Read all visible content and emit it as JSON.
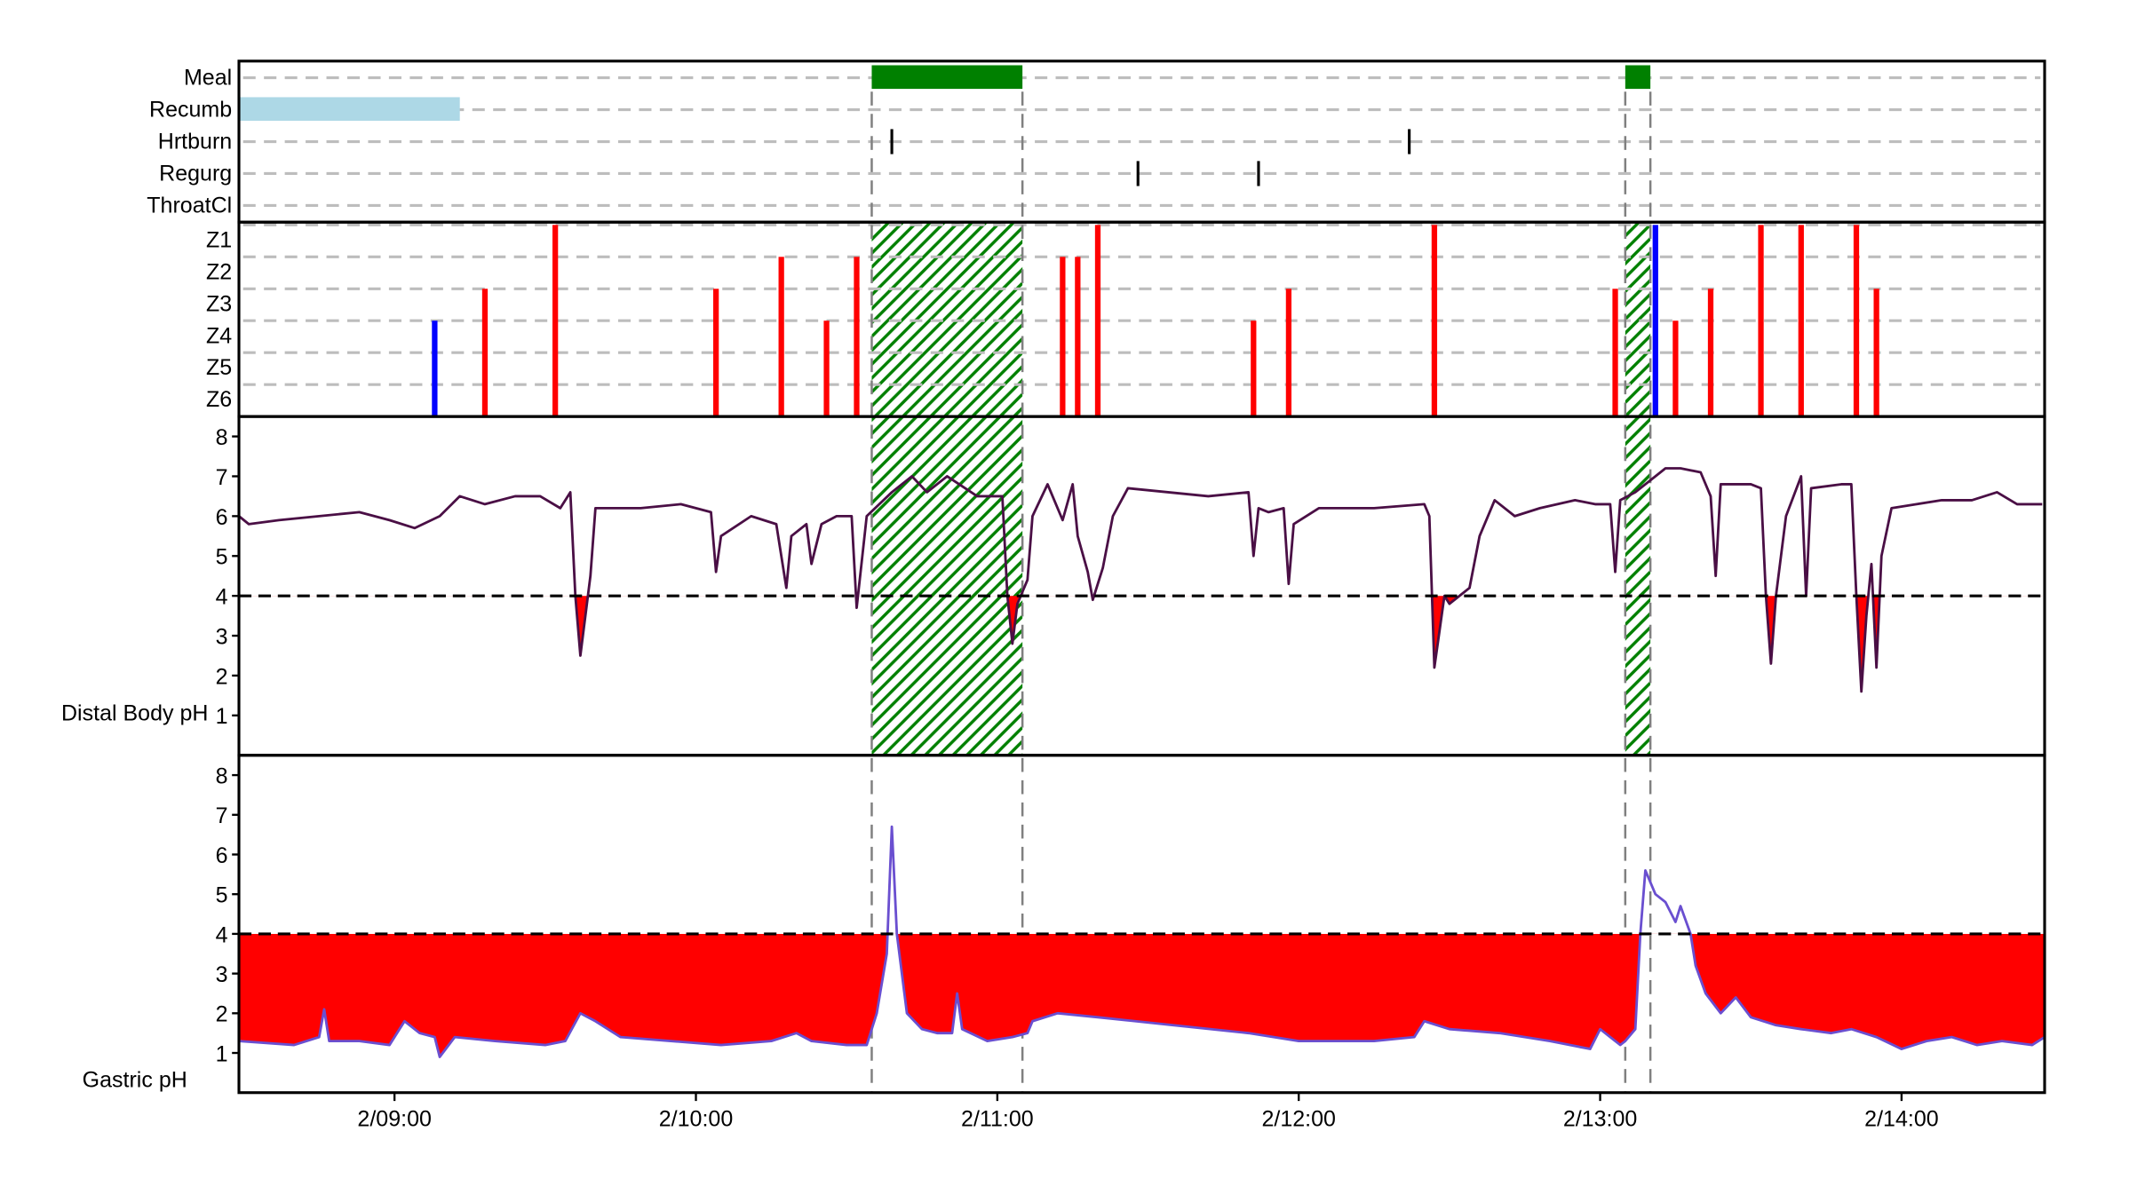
{
  "chart_data": {
    "type": "line",
    "x_axis": {
      "type": "time",
      "range": [
        "08:29",
        "14:29"
      ],
      "ticks": [
        {
          "time": "09:00",
          "label": "2/09:00"
        },
        {
          "time": "10:00",
          "label": "2/10:00"
        },
        {
          "time": "11:00",
          "label": "2/11:00"
        },
        {
          "time": "12:00",
          "label": "2/12:00"
        },
        {
          "time": "13:00",
          "label": "2/13:00"
        },
        {
          "time": "14:00",
          "label": "2/14:00"
        }
      ]
    },
    "events_panel": {
      "rows": [
        "Meal",
        "Recumb",
        "Hrtburn",
        "Regurg",
        "ThroatCl"
      ],
      "meal_periods": [
        {
          "start": "10:35",
          "end": "11:05"
        },
        {
          "start": "13:05",
          "end": "13:10"
        }
      ],
      "recumbent_periods": [
        {
          "start": "08:29",
          "end": "09:13"
        }
      ],
      "heartburn_marks": [
        "10:39",
        "12:22"
      ],
      "regurgitation_marks": [
        "11:28",
        "11:52"
      ],
      "throat_clear_marks": [],
      "colors": {
        "meal": "#008000",
        "recumb": "#add8e6",
        "marker": "#000000"
      }
    },
    "impedance_panel": {
      "rows": [
        "Z1",
        "Z2",
        "Z3",
        "Z4",
        "Z5",
        "Z6"
      ],
      "events": [
        {
          "time": "09:08",
          "top_zone": "Z4",
          "color": "#0000ff"
        },
        {
          "time": "09:18",
          "top_zone": "Z3",
          "color": "#ff0000"
        },
        {
          "time": "09:32",
          "top_zone": "Z1",
          "color": "#ff0000"
        },
        {
          "time": "10:04",
          "top_zone": "Z3",
          "color": "#ff0000"
        },
        {
          "time": "10:17",
          "top_zone": "Z2",
          "color": "#ff0000"
        },
        {
          "time": "10:26",
          "top_zone": "Z4",
          "color": "#ff0000"
        },
        {
          "time": "10:32",
          "top_zone": "Z2",
          "color": "#ff0000"
        },
        {
          "time": "11:13",
          "top_zone": "Z2",
          "color": "#ff0000"
        },
        {
          "time": "11:16",
          "top_zone": "Z2",
          "color": "#ff0000"
        },
        {
          "time": "11:20",
          "top_zone": "Z1",
          "color": "#ff0000"
        },
        {
          "time": "11:51",
          "top_zone": "Z4",
          "color": "#ff0000"
        },
        {
          "time": "11:58",
          "top_zone": "Z3",
          "color": "#ff0000"
        },
        {
          "time": "12:27",
          "top_zone": "Z1",
          "color": "#ff0000"
        },
        {
          "time": "13:03",
          "top_zone": "Z3",
          "color": "#ff0000"
        },
        {
          "time": "13:11",
          "top_zone": "Z1",
          "color": "#0000ff"
        },
        {
          "time": "13:15",
          "top_zone": "Z4",
          "color": "#ff0000"
        },
        {
          "time": "13:22",
          "top_zone": "Z3",
          "color": "#ff0000"
        },
        {
          "time": "13:32",
          "top_zone": "Z1",
          "color": "#ff0000"
        },
        {
          "time": "13:40",
          "top_zone": "Z1",
          "color": "#ff0000"
        },
        {
          "time": "13:51",
          "top_zone": "Z1",
          "color": "#ff0000"
        },
        {
          "time": "13:55",
          "top_zone": "Z3",
          "color": "#ff0000"
        }
      ]
    },
    "distal_ph_panel": {
      "ylabel": "Distal Body pH",
      "ylim": [
        0,
        8.5
      ],
      "yticks": [
        1,
        2,
        3,
        4,
        5,
        6,
        7,
        8
      ],
      "threshold": 4,
      "line_color": "#4a0f45",
      "fill_below_threshold_color": "#ff0000",
      "series": [
        [
          "08:29",
          6.0
        ],
        [
          "08:31",
          5.8
        ],
        [
          "08:37",
          5.9
        ],
        [
          "08:45",
          6.0
        ],
        [
          "08:53",
          6.1
        ],
        [
          "08:59",
          5.9
        ],
        [
          "09:04",
          5.7
        ],
        [
          "09:09",
          6.0
        ],
        [
          "09:13",
          6.5
        ],
        [
          "09:18",
          6.3
        ],
        [
          "09:24",
          6.5
        ],
        [
          "09:29",
          6.5
        ],
        [
          "09:33",
          6.2
        ],
        [
          "09:35",
          6.6
        ],
        [
          "09:36",
          4.0
        ],
        [
          "09:37",
          2.5
        ],
        [
          "09:39",
          4.5
        ],
        [
          "09:40",
          6.2
        ],
        [
          "09:49",
          6.2
        ],
        [
          "09:57",
          6.3
        ],
        [
          "10:03",
          6.1
        ],
        [
          "10:04",
          4.6
        ],
        [
          "10:05",
          5.5
        ],
        [
          "10:11",
          6.0
        ],
        [
          "10:16",
          5.8
        ],
        [
          "10:18",
          4.2
        ],
        [
          "10:19",
          5.5
        ],
        [
          "10:22",
          5.8
        ],
        [
          "10:23",
          4.8
        ],
        [
          "10:25",
          5.8
        ],
        [
          "10:28",
          6.0
        ],
        [
          "10:31",
          6.0
        ],
        [
          "10:32",
          3.7
        ],
        [
          "10:34",
          6.0
        ],
        [
          "10:39",
          6.6
        ],
        [
          "10:41",
          6.8
        ],
        [
          "10:43",
          7.0
        ],
        [
          "10:46",
          6.6
        ],
        [
          "10:50",
          7.0
        ],
        [
          "10:56",
          6.5
        ],
        [
          "11:01",
          6.5
        ],
        [
          "11:02",
          4.0
        ],
        [
          "11:03",
          2.8
        ],
        [
          "11:04",
          3.8
        ],
        [
          "11:06",
          4.4
        ],
        [
          "11:07",
          6.0
        ],
        [
          "11:10",
          6.8
        ],
        [
          "11:11",
          6.5
        ],
        [
          "11:13",
          5.9
        ],
        [
          "11:15",
          6.8
        ],
        [
          "11:16",
          5.5
        ],
        [
          "11:18",
          4.6
        ],
        [
          "11:19",
          3.9
        ],
        [
          "11:21",
          4.7
        ],
        [
          "11:23",
          6.0
        ],
        [
          "11:26",
          6.7
        ],
        [
          "11:34",
          6.6
        ],
        [
          "11:42",
          6.5
        ],
        [
          "11:50",
          6.6
        ],
        [
          "11:51",
          5.0
        ],
        [
          "11:52",
          6.2
        ],
        [
          "11:54",
          6.1
        ],
        [
          "11:57",
          6.2
        ],
        [
          "11:58",
          4.3
        ],
        [
          "11:59",
          5.8
        ],
        [
          "12:04",
          6.2
        ],
        [
          "12:15",
          6.2
        ],
        [
          "12:25",
          6.3
        ],
        [
          "12:26",
          6.0
        ],
        [
          "12:27",
          2.2
        ],
        [
          "12:29",
          4.0
        ],
        [
          "12:30",
          3.8
        ],
        [
          "12:34",
          4.2
        ],
        [
          "12:36",
          5.5
        ],
        [
          "12:39",
          6.4
        ],
        [
          "12:43",
          6.0
        ],
        [
          "12:48",
          6.2
        ],
        [
          "12:55",
          6.4
        ],
        [
          "12:59",
          6.3
        ],
        [
          "13:02",
          6.3
        ],
        [
          "13:03",
          4.6
        ],
        [
          "13:04",
          6.4
        ],
        [
          "13:07",
          6.6
        ],
        [
          "13:11",
          7.0
        ],
        [
          "13:13",
          7.2
        ],
        [
          "13:16",
          7.2
        ],
        [
          "13:20",
          7.1
        ],
        [
          "13:22",
          6.5
        ],
        [
          "13:23",
          4.5
        ],
        [
          "13:24",
          6.8
        ],
        [
          "13:30",
          6.8
        ],
        [
          "13:32",
          6.7
        ],
        [
          "13:33",
          4.0
        ],
        [
          "13:34",
          2.3
        ],
        [
          "13:35",
          4.0
        ],
        [
          "13:37",
          6.0
        ],
        [
          "13:40",
          7.0
        ],
        [
          "13:41",
          4.0
        ],
        [
          "13:42",
          6.7
        ],
        [
          "13:48",
          6.8
        ],
        [
          "13:50",
          6.8
        ],
        [
          "13:51",
          4.0
        ],
        [
          "13:52",
          1.6
        ],
        [
          "13:53",
          3.5
        ],
        [
          "13:54",
          4.8
        ],
        [
          "13:55",
          2.2
        ],
        [
          "13:56",
          5.0
        ],
        [
          "13:58",
          6.2
        ],
        [
          "14:03",
          6.3
        ],
        [
          "14:08",
          6.4
        ],
        [
          "14:14",
          6.4
        ],
        [
          "14:19",
          6.6
        ],
        [
          "14:23",
          6.3
        ],
        [
          "14:28",
          6.3
        ]
      ]
    },
    "gastric_ph_panel": {
      "ylabel": "Gastric pH",
      "ylim": [
        0,
        8.5
      ],
      "yticks": [
        1,
        2,
        3,
        4,
        5,
        6,
        7,
        8
      ],
      "threshold": 4,
      "line_color": "#6a4fd0",
      "fill_below_threshold_color": "#ff0000",
      "series": [
        [
          "08:29",
          1.3
        ],
        [
          "08:40",
          1.2
        ],
        [
          "08:45",
          1.4
        ],
        [
          "08:46",
          2.1
        ],
        [
          "08:47",
          1.3
        ],
        [
          "08:53",
          1.3
        ],
        [
          "08:59",
          1.2
        ],
        [
          "09:02",
          1.8
        ],
        [
          "09:05",
          1.5
        ],
        [
          "09:08",
          1.4
        ],
        [
          "09:09",
          0.9
        ],
        [
          "09:12",
          1.4
        ],
        [
          "09:20",
          1.3
        ],
        [
          "09:30",
          1.2
        ],
        [
          "09:34",
          1.3
        ],
        [
          "09:37",
          2.0
        ],
        [
          "09:40",
          1.8
        ],
        [
          "09:45",
          1.4
        ],
        [
          "09:55",
          1.3
        ],
        [
          "10:05",
          1.2
        ],
        [
          "10:15",
          1.3
        ],
        [
          "10:20",
          1.5
        ],
        [
          "10:23",
          1.3
        ],
        [
          "10:30",
          1.2
        ],
        [
          "10:34",
          1.2
        ],
        [
          "10:36",
          2.0
        ],
        [
          "10:38",
          3.5
        ],
        [
          "10:39",
          6.7
        ],
        [
          "10:40",
          4.0
        ],
        [
          "10:42",
          2.0
        ],
        [
          "10:45",
          1.6
        ],
        [
          "10:48",
          1.5
        ],
        [
          "10:51",
          1.5
        ],
        [
          "10:52",
          2.5
        ],
        [
          "10:53",
          1.6
        ],
        [
          "10:58",
          1.3
        ],
        [
          "11:03",
          1.4
        ],
        [
          "11:06",
          1.5
        ],
        [
          "11:07",
          1.8
        ],
        [
          "11:12",
          2.0
        ],
        [
          "11:20",
          1.9
        ],
        [
          "11:35",
          1.7
        ],
        [
          "11:50",
          1.5
        ],
        [
          "12:00",
          1.3
        ],
        [
          "12:15",
          1.3
        ],
        [
          "12:23",
          1.4
        ],
        [
          "12:25",
          1.8
        ],
        [
          "12:30",
          1.6
        ],
        [
          "12:40",
          1.5
        ],
        [
          "12:50",
          1.3
        ],
        [
          "12:58",
          1.1
        ],
        [
          "13:00",
          1.6
        ],
        [
          "13:02",
          1.4
        ],
        [
          "13:04",
          1.2
        ],
        [
          "13:05",
          1.3
        ],
        [
          "13:07",
          1.6
        ],
        [
          "13:08",
          4.0
        ],
        [
          "13:09",
          5.6
        ],
        [
          "13:11",
          5.0
        ],
        [
          "13:13",
          4.8
        ],
        [
          "13:15",
          4.3
        ],
        [
          "13:16",
          4.7
        ],
        [
          "13:18",
          4.0
        ],
        [
          "13:19",
          3.2
        ],
        [
          "13:21",
          2.5
        ],
        [
          "13:24",
          2.0
        ],
        [
          "13:27",
          2.4
        ],
        [
          "13:30",
          1.9
        ],
        [
          "13:35",
          1.7
        ],
        [
          "13:40",
          1.6
        ],
        [
          "13:46",
          1.5
        ],
        [
          "13:50",
          1.6
        ],
        [
          "13:55",
          1.4
        ],
        [
          "14:00",
          1.1
        ],
        [
          "14:05",
          1.3
        ],
        [
          "14:10",
          1.4
        ],
        [
          "14:15",
          1.2
        ],
        [
          "14:20",
          1.3
        ],
        [
          "14:26",
          1.2
        ],
        [
          "14:29",
          1.4
        ]
      ]
    }
  }
}
